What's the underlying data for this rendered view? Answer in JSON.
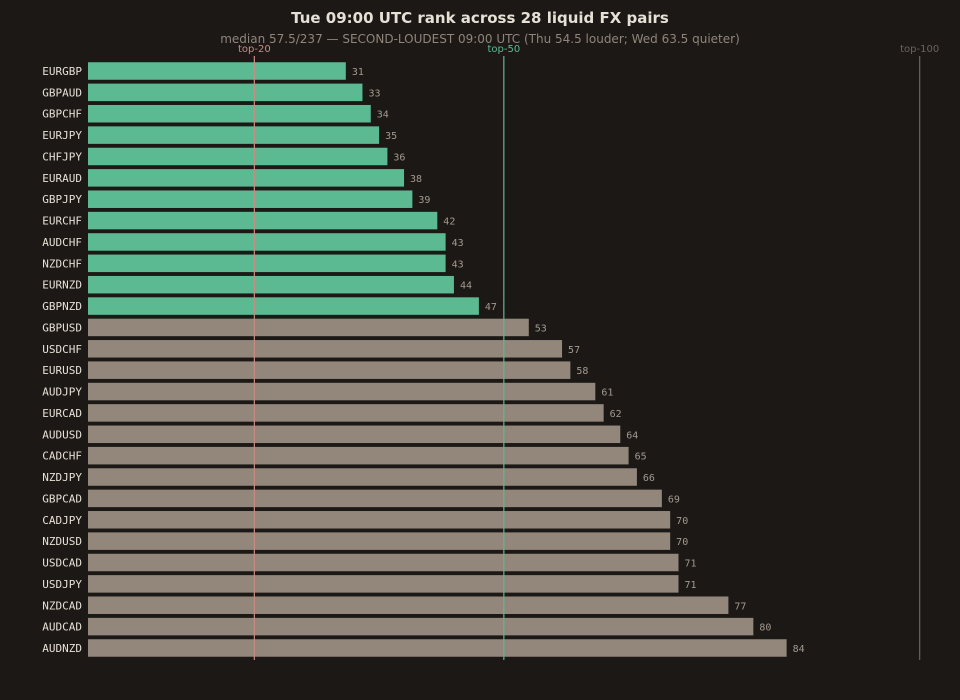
{
  "chart_data": {
    "type": "bar",
    "orientation": "horizontal",
    "title": "Tue 09:00 UTC rank across 28 liquid FX pairs",
    "subtitle": "median 57.5/237 — SECOND-LOUDEST 09:00 UTC (Thu 54.5 louder; Wed 63.5 quieter)",
    "xlabel": "",
    "ylabel": "",
    "xlim": [
      0,
      101
    ],
    "grid": false,
    "categories": [
      "EURGBP",
      "GBPAUD",
      "GBPCHF",
      "EURJPY",
      "CHFJPY",
      "EURAUD",
      "GBPJPY",
      "EURCHF",
      "AUDCHF",
      "NZDCHF",
      "EURNZD",
      "GBPNZD",
      "GBPUSD",
      "USDCHF",
      "EURUSD",
      "AUDJPY",
      "EURCAD",
      "AUDUSD",
      "CADCHF",
      "NZDJPY",
      "GBPCAD",
      "CADJPY",
      "NZDUSD",
      "USDCAD",
      "USDJPY",
      "NZDCAD",
      "AUDCAD",
      "AUDNZD"
    ],
    "values": [
      31,
      33,
      34,
      35,
      36,
      38,
      39,
      42,
      43,
      43,
      44,
      47,
      53,
      57,
      58,
      61,
      62,
      64,
      65,
      66,
      69,
      70,
      70,
      71,
      71,
      77,
      80,
      84
    ],
    "highlight_threshold": 50,
    "colors": {
      "highlight": "#5bba92",
      "normal": "#93877b",
      "background": "#1c1815"
    },
    "reference_lines": [
      {
        "label": "top-20",
        "value": 20,
        "color": "#c98b86"
      },
      {
        "label": "top-50",
        "value": 50,
        "color": "#5bba92"
      },
      {
        "label": "top-100",
        "value": 100,
        "color": "#6b635c"
      }
    ]
  }
}
